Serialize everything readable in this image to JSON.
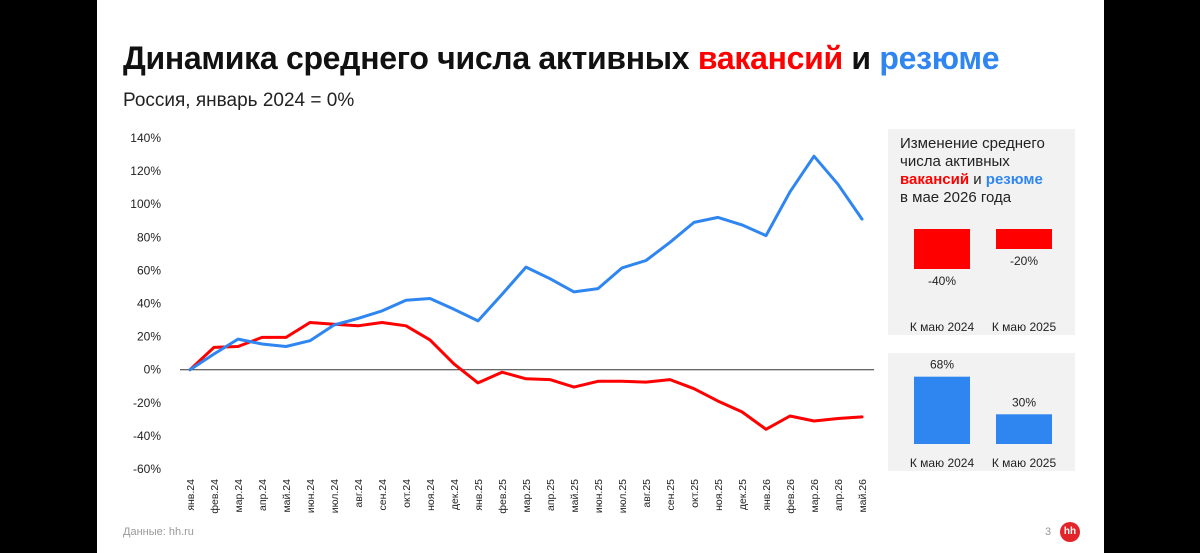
{
  "title": {
    "part1": "Динамика среднего числа активных ",
    "vacancies": "вакансий",
    "and": " и ",
    "resumes": "резюме"
  },
  "subtitle": "Россия, январь 2024 = 0%",
  "colors": {
    "vacancies": "#ff0000",
    "resumes": "#2f86f0",
    "grid": "#e6e6e6",
    "panel_bg": "#f2f2f2",
    "logo": "#e3242b"
  },
  "side": {
    "title_line1": "Изменение среднего",
    "title_line2": "числа активных",
    "vacancies": "вакансий",
    "and": " и ",
    "resumes": "резюме",
    "title_line4": "в мае 2026 года"
  },
  "footer": {
    "source": "Данные: hh.ru",
    "page": "3",
    "logo_text": "hh"
  },
  "chart_data": [
    {
      "type": "line",
      "x": [
        "янв.24",
        "фев.24",
        "мар.24",
        "апр.24",
        "май.24",
        "июн.24",
        "июл.24",
        "авг.24",
        "сен.24",
        "окт.24",
        "ноя.24",
        "дек.24",
        "янв.25",
        "фев.25",
        "мар.25",
        "апр.25",
        "май.25",
        "июн.25",
        "июл.25",
        "авг.25",
        "сен.25",
        "окт.25",
        "ноя.25",
        "дек.25",
        "янв.26",
        "фев.26",
        "мар.26",
        "апр.26",
        "май.26"
      ],
      "series": [
        {
          "name": "вакансий",
          "color": "#ff0000",
          "values": [
            0,
            13.5,
            14,
            19.5,
            19.5,
            28.5,
            27.5,
            26.5,
            28.5,
            26.5,
            18,
            3.5,
            -8,
            -1.5,
            -5.5,
            -6,
            -10.5,
            -7,
            -7,
            -7.5,
            -6,
            -11.5,
            -19,
            -25.5,
            -36,
            -28,
            -31,
            -29.5,
            -28.5
          ]
        },
        {
          "name": "резюме",
          "color": "#2f86f0",
          "values": [
            0,
            9.5,
            18.5,
            15.5,
            14,
            17.5,
            27,
            31,
            35.5,
            42,
            43,
            36.5,
            29.5,
            45.5,
            62,
            55,
            47,
            49,
            61.5,
            66,
            77,
            89,
            92,
            87.5,
            81,
            107.5,
            129,
            112,
            91
          ]
        }
      ],
      "yticks": [
        "140%",
        "120%",
        "100%",
        "80%",
        "60%",
        "40%",
        "20%",
        "0%",
        "-20%",
        "-40%",
        "-60%"
      ],
      "ylim": [
        -60,
        140
      ],
      "grid": false
    },
    {
      "type": "bar",
      "series_name": "вакансий",
      "color": "#ff0000",
      "categories": [
        "К маю 2024",
        "К маю 2025"
      ],
      "values": [
        -40,
        -20
      ],
      "labels": [
        "-40%",
        "-20%"
      ]
    },
    {
      "type": "bar",
      "series_name": "резюме",
      "color": "#2f86f0",
      "categories": [
        "К маю 2024",
        "К маю 2025"
      ],
      "values": [
        68,
        30
      ],
      "labels": [
        "68%",
        "30%"
      ]
    }
  ]
}
